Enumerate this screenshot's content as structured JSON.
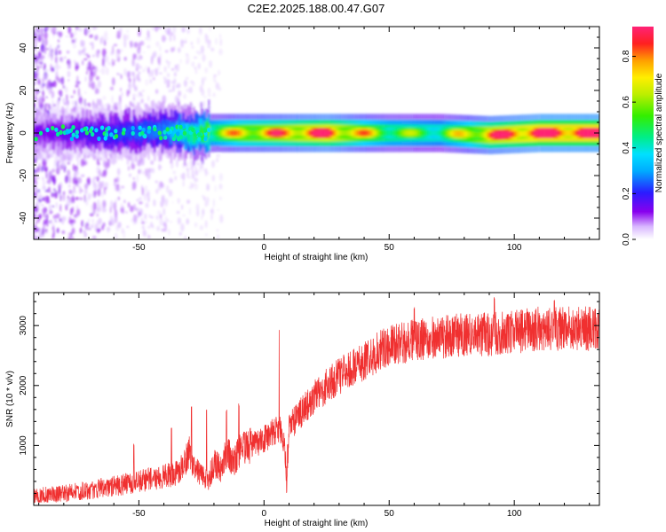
{
  "page_title": "C2E2.2025.188.00.47.G07",
  "chart_data": [
    {
      "type": "heatmap",
      "title": "C2E2.2025.188.00.47.G07",
      "xlabel": "Height of straight line (km)",
      "ylabel": "Frequency (Hz)",
      "xlim": [
        -92,
        134
      ],
      "ylim": [
        -50,
        50
      ],
      "x_ticks": [
        -50,
        0,
        50,
        100
      ],
      "y_ticks": [
        -40,
        -20,
        0,
        20,
        40
      ],
      "grid": false,
      "colorbar": {
        "label": "Normalized spectral amplitude",
        "range": [
          0,
          0.93
        ],
        "ticks": [
          0.0,
          0.2,
          0.4,
          0.6,
          0.8
        ],
        "tick_labels": [
          "0.0",
          "0.2",
          "0.4",
          "0.6",
          "0.8"
        ]
      },
      "description_points": [
        {
          "x": -85,
          "freq": 0,
          "amp": 0.12
        },
        {
          "x": -60,
          "freq": 0,
          "amp": 0.2
        },
        {
          "x": -40,
          "freq": 1,
          "amp": 0.25
        },
        {
          "x": -30,
          "freq": 0,
          "amp": 0.4
        },
        {
          "x": -20,
          "freq": 0,
          "amp": 0.55
        },
        {
          "x": -10,
          "freq": 0,
          "amp": 0.7
        },
        {
          "x": 5,
          "freq": 0,
          "amp": 0.75
        },
        {
          "x": 25,
          "freq": 0,
          "amp": 0.85
        },
        {
          "x": 50,
          "freq": 0,
          "amp": 0.55
        },
        {
          "x": 70,
          "freq": 0,
          "amp": 0.5
        },
        {
          "x": 90,
          "freq": -1,
          "amp": 0.8
        },
        {
          "x": 110,
          "freq": 0,
          "amp": 0.9
        },
        {
          "x": 130,
          "freq": 0,
          "amp": 0.9
        }
      ]
    },
    {
      "type": "line",
      "xlabel": "Height of straight line (km)",
      "ylabel": "SNR (10 * v/v)",
      "xlim": [
        -92,
        134
      ],
      "ylim": [
        0,
        3550
      ],
      "x_ticks": [
        -50,
        0,
        50,
        100
      ],
      "y_ticks": [
        1000,
        2000,
        3000
      ],
      "grid": false,
      "series": [
        {
          "color": "#f03030",
          "trend": {
            "x": [
              -92,
              -80,
              -70,
              -60,
              -50,
              -40,
              -35,
              -32,
              -30,
              -28,
              -25,
              -22,
              -20,
              -17,
              -15,
              -12,
              -10,
              -5,
              0,
              3,
              6,
              8,
              9,
              10,
              15,
              20,
              25,
              30,
              35,
              40,
              45,
              50,
              55,
              60,
              70,
              80,
              90,
              100,
              110,
              120,
              134
            ],
            "y": [
              150,
              200,
              250,
              320,
              400,
              480,
              550,
              700,
              900,
              600,
              500,
              450,
              700,
              600,
              900,
              700,
              900,
              1000,
              1100,
              1200,
              1300,
              1100,
              500,
              1300,
              1550,
              1800,
              2000,
              2150,
              2300,
              2400,
              2550,
              2650,
              2700,
              2750,
              2800,
              2850,
              2850,
              2900,
              2950,
              2950,
              2950
            ]
          },
          "spikes": [
            {
              "x": -52,
              "y": 1050
            },
            {
              "x": -37,
              "y": 1300
            },
            {
              "x": -29,
              "y": 1700
            },
            {
              "x": -23,
              "y": 1650
            },
            {
              "x": -15,
              "y": 1600
            },
            {
              "x": -10,
              "y": 1700
            },
            {
              "x": 6,
              "y": 3000
            },
            {
              "x": 9,
              "y": 250
            },
            {
              "x": 60,
              "y": 3350
            },
            {
              "x": 92,
              "y": 3500
            },
            {
              "x": 116,
              "y": 3450
            }
          ]
        }
      ]
    }
  ]
}
